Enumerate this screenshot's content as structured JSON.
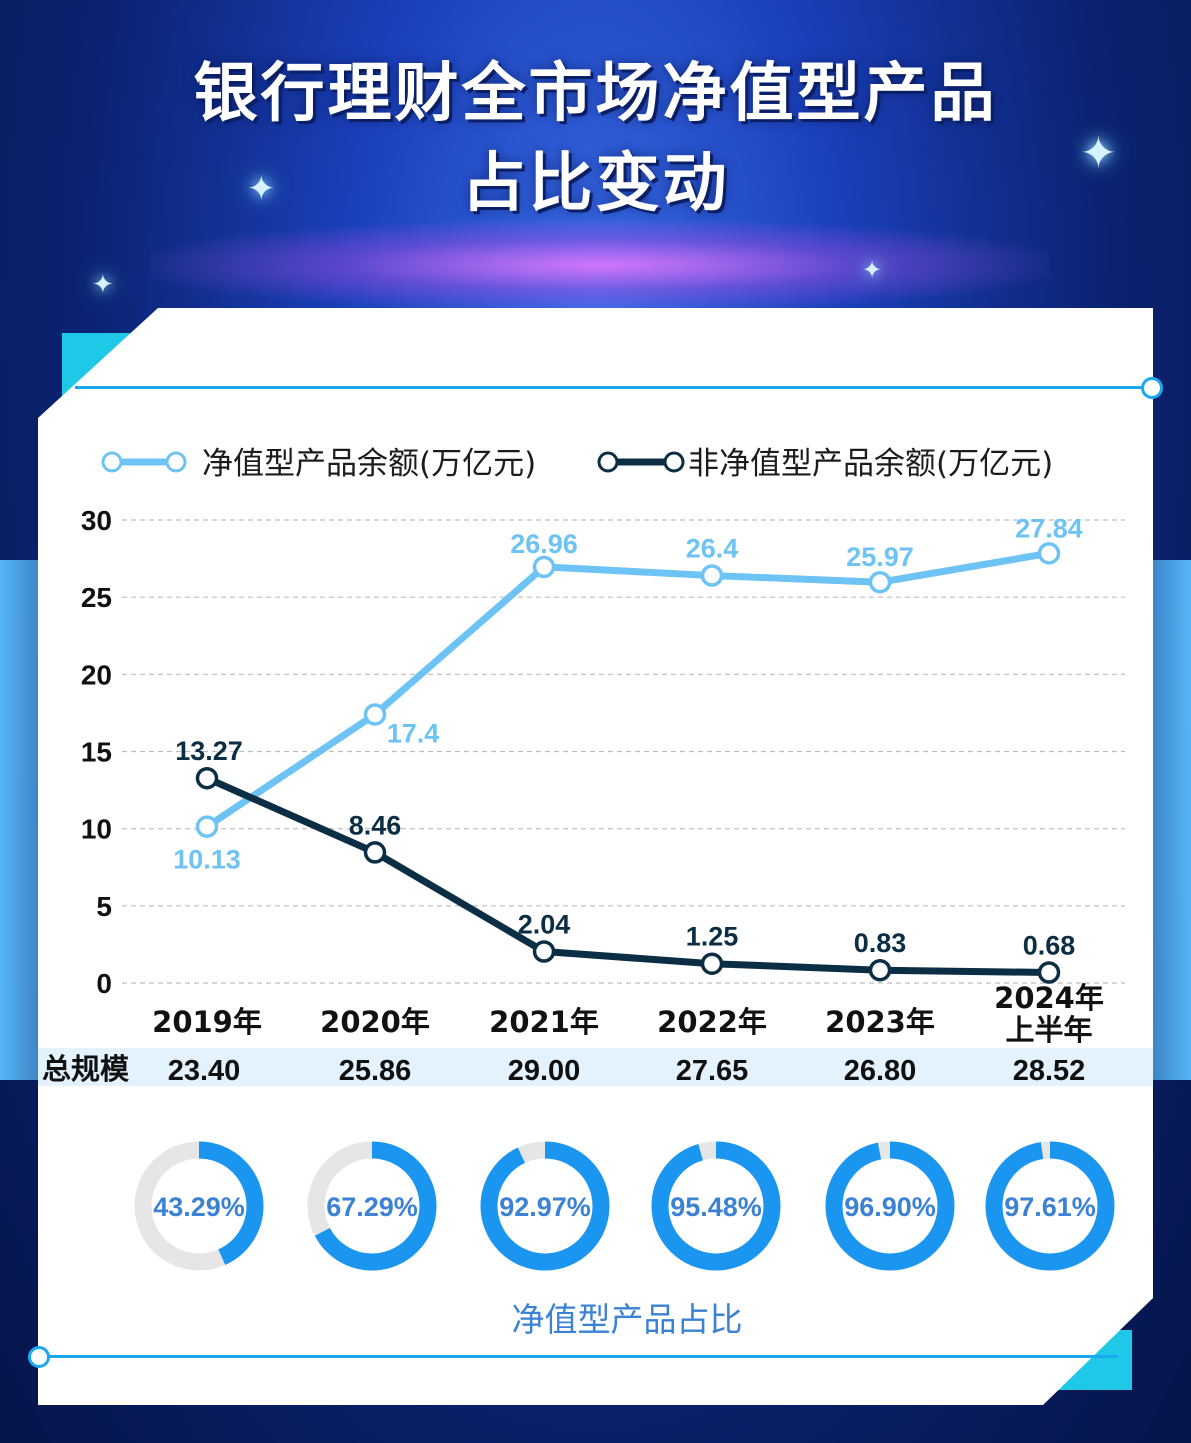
{
  "title_line1": "银行理财全市场净值型产品",
  "title_line2": "占比变动",
  "colors": {
    "net_value": "#6dc3f3",
    "non_net_value": "#0b2e45",
    "ring_fill": "#1a96f0",
    "ring_track": "#e6e6e6",
    "ring_text": "#3b82d4",
    "scale_row_bg": "#e3f2fc"
  },
  "chart_data": {
    "type": "line",
    "categories": [
      "2019年",
      "2020年",
      "2021年",
      "2022年",
      "2023年",
      "2024年\n上半年"
    ],
    "series": [
      {
        "name": "净值型产品余额(万亿元)",
        "values": [
          10.13,
          17.4,
          26.96,
          26.4,
          25.97,
          27.84
        ],
        "labels": [
          "10.13",
          "17.4",
          "26.96",
          "26.4",
          "25.97",
          "27.84"
        ]
      },
      {
        "name": "非净值型产品余额(万亿元)",
        "values": [
          13.27,
          8.46,
          2.04,
          1.25,
          0.83,
          0.68
        ],
        "labels": [
          "13.27",
          "8.46",
          "2.04",
          "1.25",
          "0.83",
          "0.68"
        ]
      }
    ],
    "ylim": [
      0,
      30
    ],
    "yticks": [
      "0",
      "5",
      "10",
      "15",
      "20",
      "25",
      "30"
    ],
    "grid": true,
    "legend": "top",
    "scale_row": {
      "label": "总规模",
      "values": [
        "23.40",
        "25.86",
        "29.00",
        "27.65",
        "26.80",
        "28.52"
      ]
    },
    "ratio": {
      "label": "净值型产品占比",
      "values": [
        43.29,
        67.29,
        92.97,
        95.48,
        96.9,
        97.61
      ],
      "labels": [
        "43.29%",
        "67.29%",
        "92.97%",
        "95.48%",
        "96.90%",
        "97.61%"
      ]
    }
  }
}
